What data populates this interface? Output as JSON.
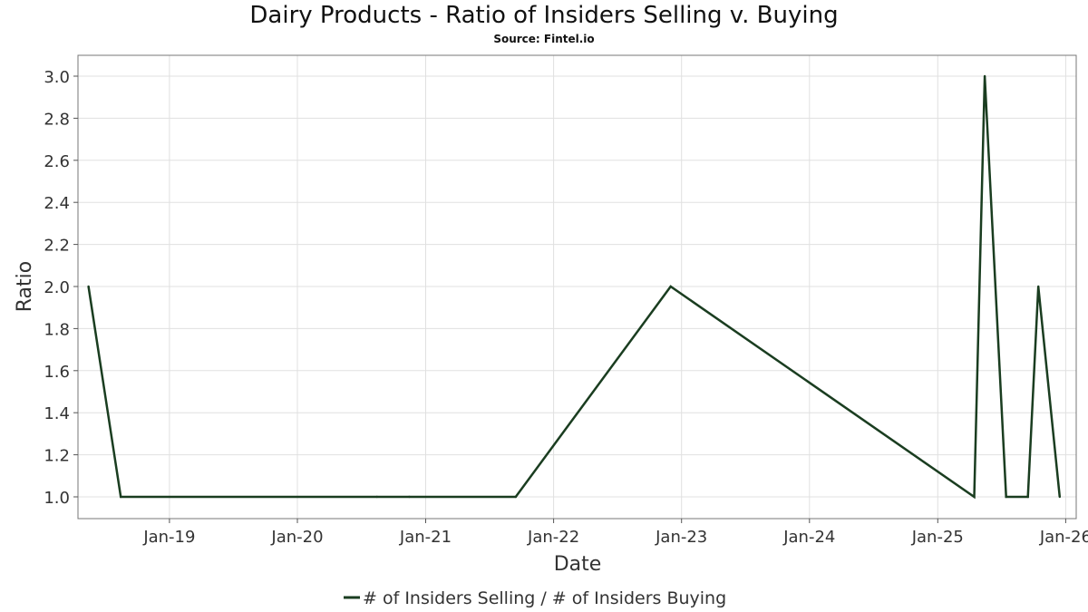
{
  "chart_data": {
    "type": "line",
    "title": "Dairy Products - Ratio of Insiders Selling v. Buying",
    "subtitle": "Source: Fintel.io",
    "xlabel": "Date",
    "ylabel": "Ratio",
    "x_axis_type": "date",
    "xlim": [
      "2018-04-15",
      "2026-01-31"
    ],
    "ylim": [
      0.9,
      3.1
    ],
    "x_ticks": [
      {
        "date": "2019-01-01",
        "label": "Jan-19"
      },
      {
        "date": "2020-01-01",
        "label": "Jan-20"
      },
      {
        "date": "2021-01-01",
        "label": "Jan-21"
      },
      {
        "date": "2022-01-01",
        "label": "Jan-22"
      },
      {
        "date": "2023-01-01",
        "label": "Jan-23"
      },
      {
        "date": "2024-01-01",
        "label": "Jan-24"
      },
      {
        "date": "2025-01-01",
        "label": "Jan-25"
      },
      {
        "date": "2026-01-01",
        "label": "Jan-26"
      }
    ],
    "y_ticks": [
      {
        "value": 1.0,
        "label": "1.0"
      },
      {
        "value": 1.2,
        "label": "1.2"
      },
      {
        "value": 1.4,
        "label": "1.4"
      },
      {
        "value": 1.6,
        "label": "1.6"
      },
      {
        "value": 1.8,
        "label": "1.8"
      },
      {
        "value": 2.0,
        "label": "2.0"
      },
      {
        "value": 2.2,
        "label": "2.2"
      },
      {
        "value": 2.4,
        "label": "2.4"
      },
      {
        "value": 2.6,
        "label": "2.6"
      },
      {
        "value": 2.8,
        "label": "2.8"
      },
      {
        "value": 3.0,
        "label": "3.0"
      }
    ],
    "grid": true,
    "legend_position": "bottom-center",
    "series": [
      {
        "name": "# of Insiders Selling / # of Insiders Buying",
        "color": "#1a3d20",
        "points": [
          {
            "date": "2018-05-15",
            "value": 2.0
          },
          {
            "date": "2018-08-15",
            "value": 1.0
          },
          {
            "date": "2020-08-15",
            "value": 1.0
          },
          {
            "date": "2020-11-15",
            "value": 1.0
          },
          {
            "date": "2021-09-15",
            "value": 1.0
          },
          {
            "date": "2022-12-01",
            "value": 2.0
          },
          {
            "date": "2025-04-15",
            "value": 1.0
          },
          {
            "date": "2025-05-15",
            "value": 3.0
          },
          {
            "date": "2025-07-15",
            "value": 1.0
          },
          {
            "date": "2025-09-15",
            "value": 1.0
          },
          {
            "date": "2025-10-15",
            "value": 2.0
          },
          {
            "date": "2025-12-15",
            "value": 1.0
          }
        ]
      }
    ]
  }
}
